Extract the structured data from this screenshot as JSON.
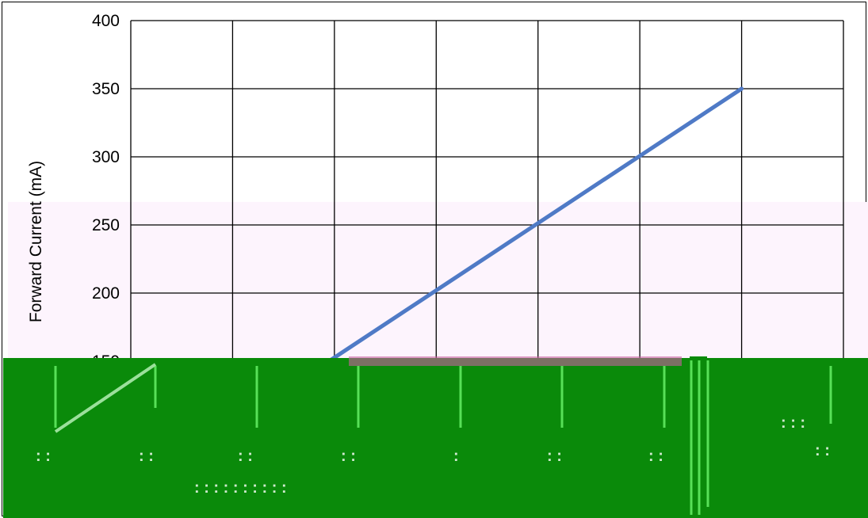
{
  "chart_data": {
    "type": "line",
    "title": "",
    "ylabel": "Forward Current (mA)",
    "xlabel": "",
    "ylim": [
      0,
      400
    ],
    "y_ticks": [
      150,
      200,
      250,
      300,
      350,
      400
    ],
    "x_gridlines": 8,
    "grid": true,
    "series": [
      {
        "values": [
          {
            "x": 0,
            "y": 150
          },
          {
            "x": 6,
            "y": 350
          }
        ]
      }
    ],
    "colors": {
      "line": "#4f7ac6",
      "overlay": "#0a8a0a",
      "band": "#fdf4fd"
    }
  }
}
